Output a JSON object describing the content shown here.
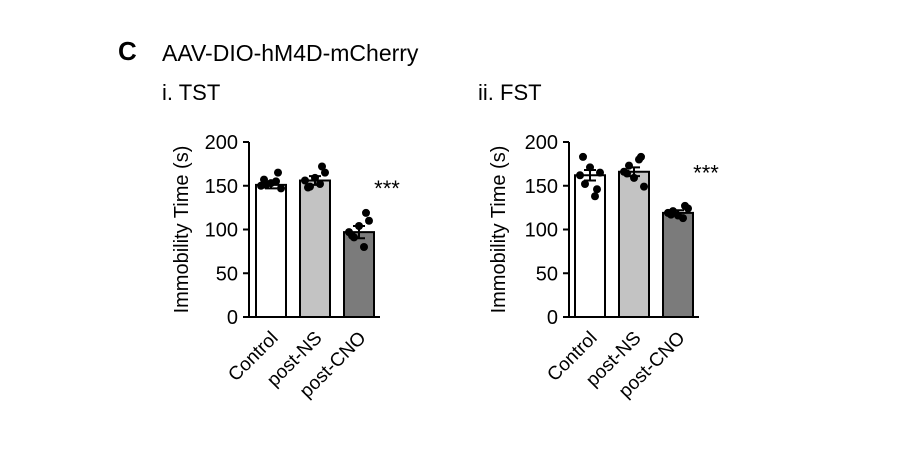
{
  "panel_label": "C",
  "figure_title": "AAV-DIO-hM4D-mCherry",
  "colors": {
    "control": "#ffffff",
    "post_ns": "#c3c3c3",
    "post_cno": "#7b7b7b",
    "axis": "#000000"
  },
  "chart_data": [
    {
      "type": "bar",
      "title": "i. TST",
      "ylabel": "Immobility Time (s)",
      "ylim": [
        0,
        200
      ],
      "yticks": [
        0,
        50,
        100,
        150,
        200
      ],
      "categories": [
        "Control",
        "post-NS",
        "post-CNO"
      ],
      "values": [
        151,
        156,
        97
      ],
      "sem": [
        4,
        5,
        7
      ],
      "annotations": [
        "",
        "",
        "***"
      ],
      "points": [
        [
          150,
          151,
          153,
          155,
          147,
          157,
          165
        ],
        [
          156,
          149,
          159,
          152,
          165,
          148,
          172
        ],
        [
          97,
          91,
          104,
          80,
          110,
          93,
          119
        ]
      ]
    },
    {
      "type": "bar",
      "title": "ii. FST",
      "ylabel": "Immobility Time (s)",
      "ylim": [
        0,
        200
      ],
      "yticks": [
        0,
        50,
        100,
        150,
        200
      ],
      "categories": [
        "Control",
        "post-NS",
        "post-CNO"
      ],
      "values": [
        162,
        166,
        119
      ],
      "sem": [
        6,
        5,
        3
      ],
      "annotations": [
        "",
        "",
        "***"
      ],
      "points": [
        [
          162,
          152,
          171,
          138,
          165,
          183,
          146
        ],
        [
          166,
          173,
          159,
          180,
          149,
          164,
          183
        ],
        [
          119,
          121,
          116,
          113,
          124,
          117,
          127
        ]
      ]
    }
  ]
}
